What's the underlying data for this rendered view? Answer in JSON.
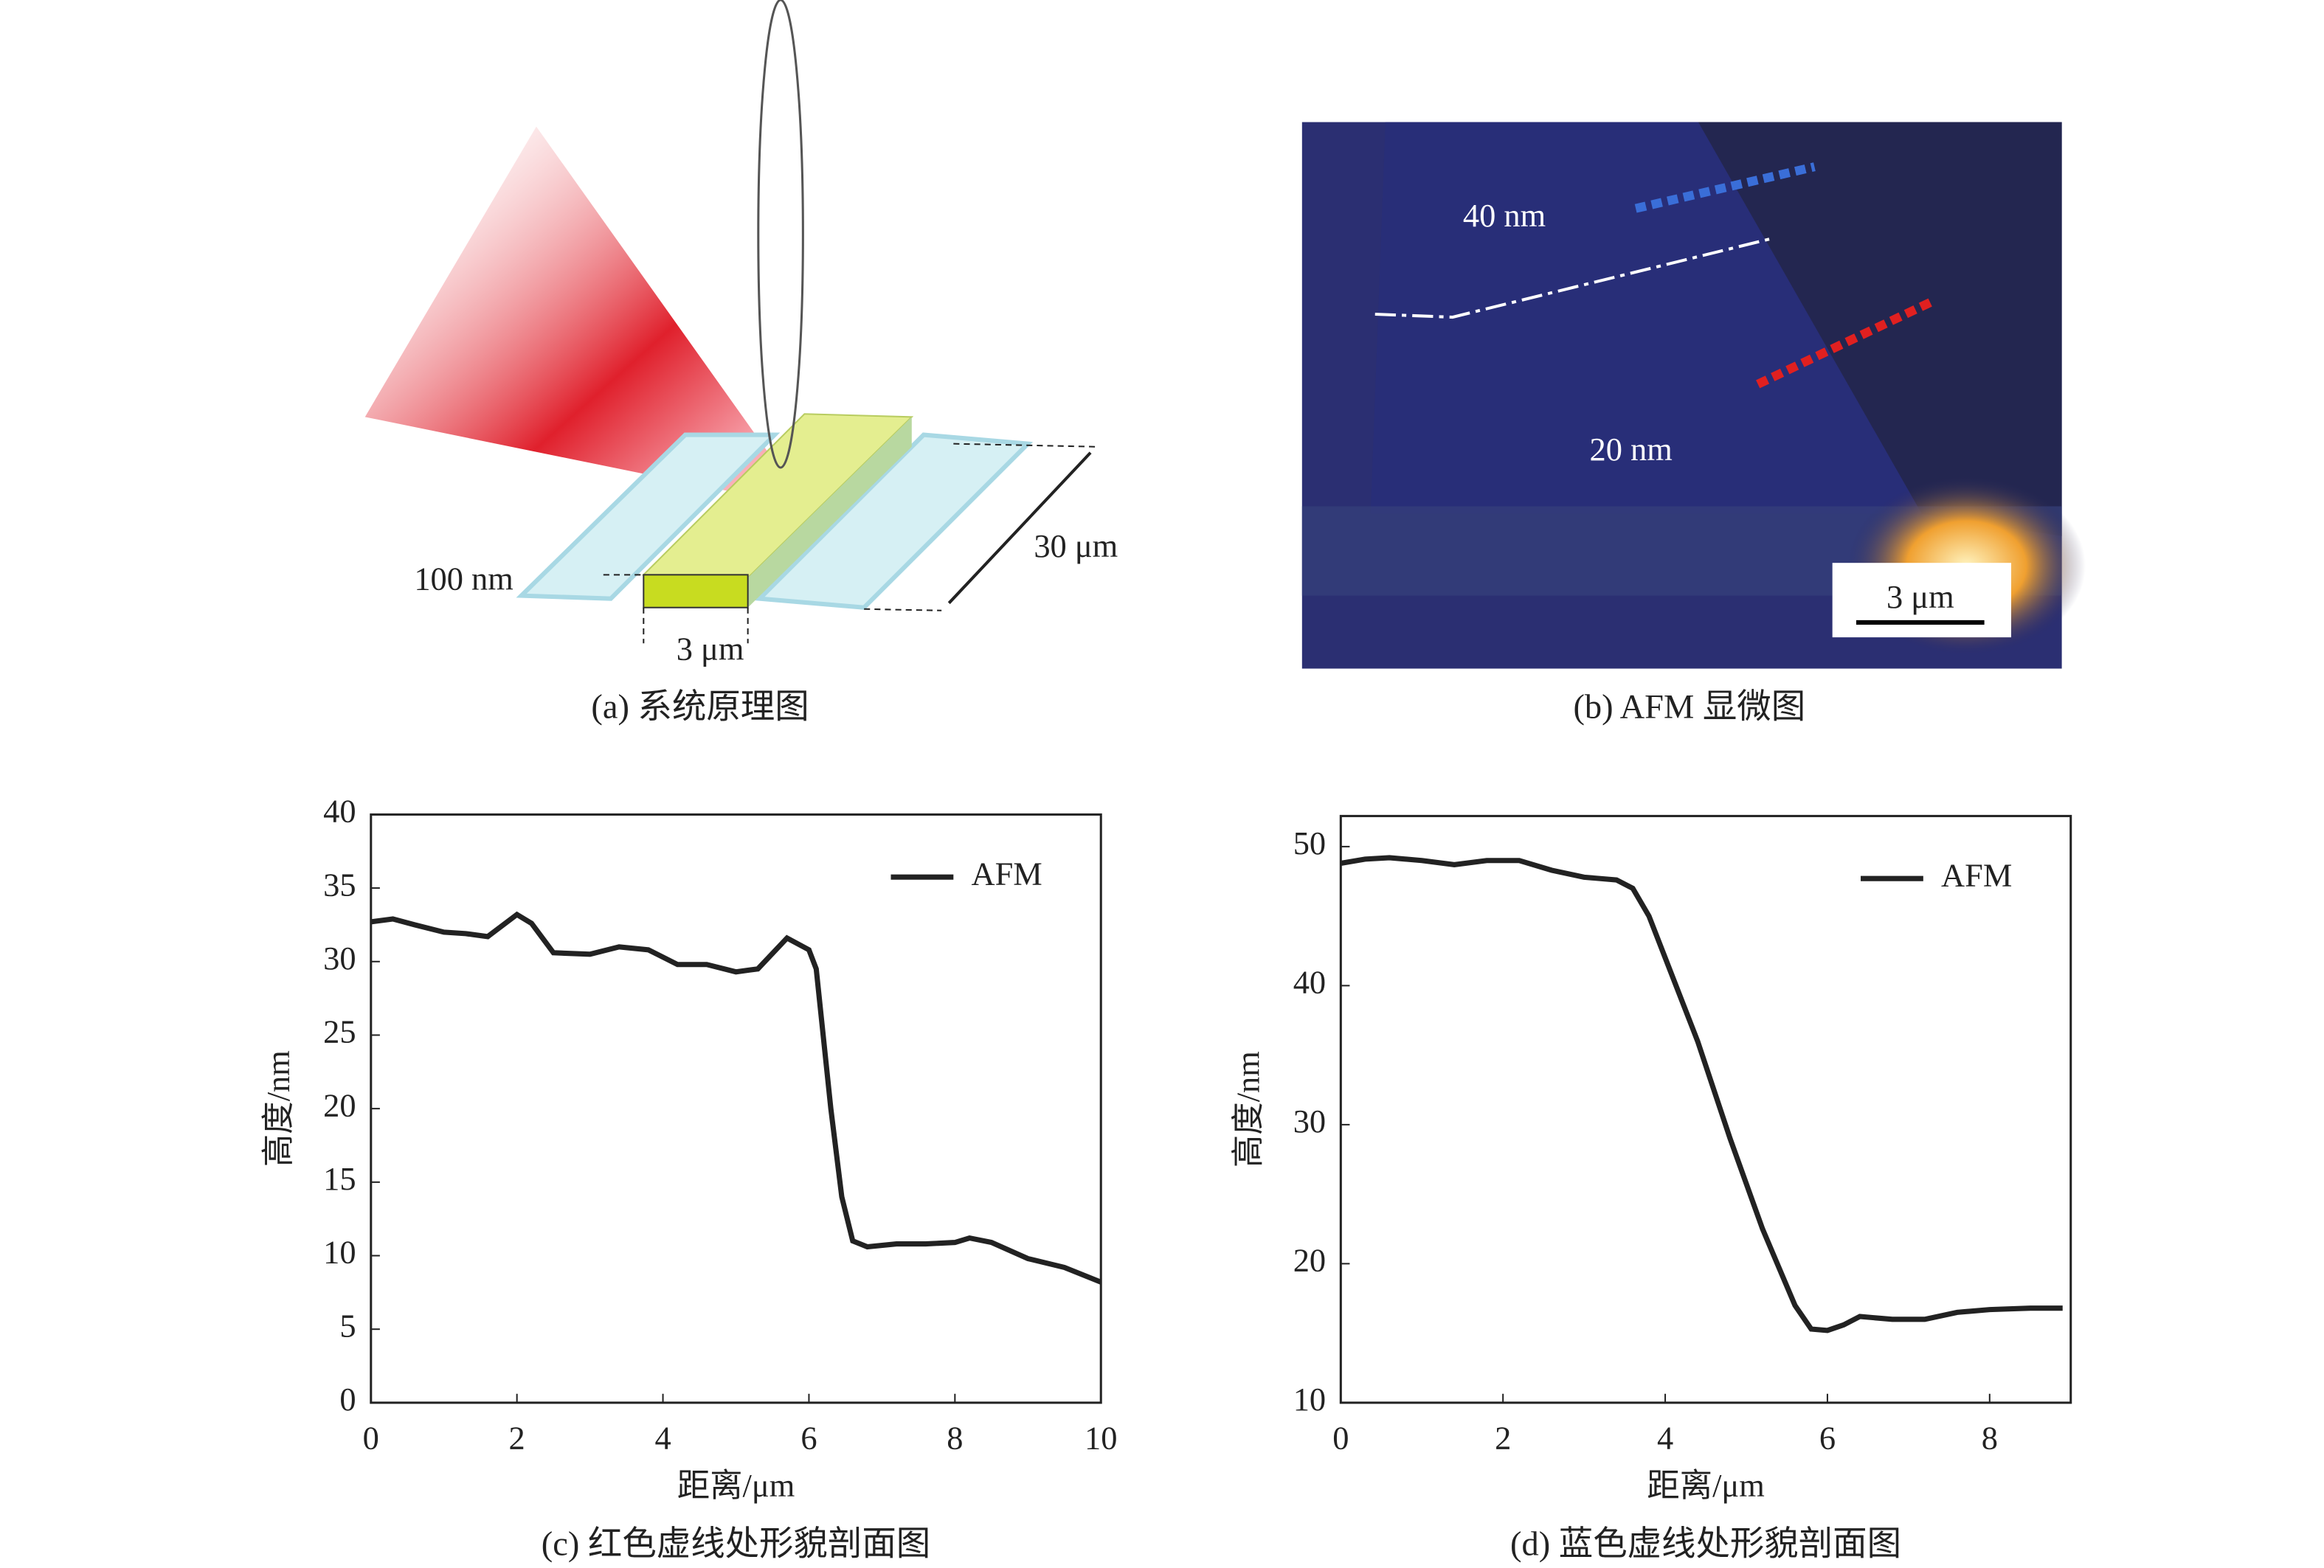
{
  "panel_a": {
    "labels": [
      "100 nm",
      "3 μm",
      "30 μm"
    ],
    "caption": "(a) 系统原理图"
  },
  "panel_b": {
    "labels": [
      "40 nm",
      "20 nm",
      "3 μm"
    ],
    "caption": "(b) AFM 显微图"
  },
  "chart_data": [
    {
      "type": "line",
      "caption": "(c) 红色虚线处形貌剖面图",
      "x_label": "距离/μm",
      "y_label": "高度/nm",
      "legend": "upper right",
      "x": [
        0,
        0.3,
        0.6,
        1,
        1.3,
        1.6,
        2,
        2.2,
        2.5,
        3,
        3.4,
        3.8,
        4.2,
        4.6,
        5,
        5.3,
        5.7,
        6,
        6.1,
        6.3,
        6.45,
        6.6,
        6.8,
        7.2,
        7.6,
        8,
        8.2,
        8.5,
        9,
        9.5,
        10
      ],
      "series": [
        {
          "name": "AFM",
          "color": "#222222",
          "values": [
            32.7,
            32.9,
            32.5,
            32,
            31.9,
            31.7,
            33.2,
            32.6,
            30.6,
            30.5,
            31,
            30.8,
            29.8,
            29.8,
            29.3,
            29.5,
            31.6,
            30.8,
            29.5,
            20,
            14,
            11,
            10.6,
            10.8,
            10.8,
            10.9,
            11.2,
            10.9,
            9.8,
            9.2,
            8.2
          ]
        }
      ],
      "xlim": [
        0,
        10
      ],
      "ylim": [
        0,
        40
      ],
      "xticks": [
        0,
        2,
        4,
        6,
        8,
        10
      ],
      "yticks": [
        0,
        5,
        10,
        15,
        20,
        25,
        30,
        35,
        40
      ]
    },
    {
      "type": "line",
      "caption": "(d) 蓝色虚线处形貌剖面图",
      "x_label": "距离/μm",
      "y_label": "高度/nm",
      "legend": "upper right",
      "x": [
        0,
        0.3,
        0.6,
        1,
        1.4,
        1.8,
        2.2,
        2.6,
        3,
        3.4,
        3.6,
        3.8,
        4,
        4.4,
        4.8,
        5.2,
        5.6,
        5.8,
        6,
        6.2,
        6.4,
        6.8,
        7.2,
        7.6,
        8,
        8.5,
        8.9
      ],
      "series": [
        {
          "name": "AFM",
          "color": "#222222",
          "values": [
            48.8,
            49.1,
            49.2,
            49,
            48.7,
            49,
            49,
            48.3,
            47.8,
            47.6,
            47,
            45,
            42,
            36,
            29,
            22.5,
            17,
            15.3,
            15.2,
            15.6,
            16.2,
            16,
            16,
            16.5,
            16.7,
            16.8,
            16.8
          ]
        }
      ],
      "xlim": [
        0,
        9
      ],
      "ylim": [
        10,
        52.2
      ],
      "xticks": [
        0,
        2,
        4,
        6,
        8
      ],
      "yticks": [
        10,
        20,
        30,
        40,
        50
      ]
    }
  ]
}
